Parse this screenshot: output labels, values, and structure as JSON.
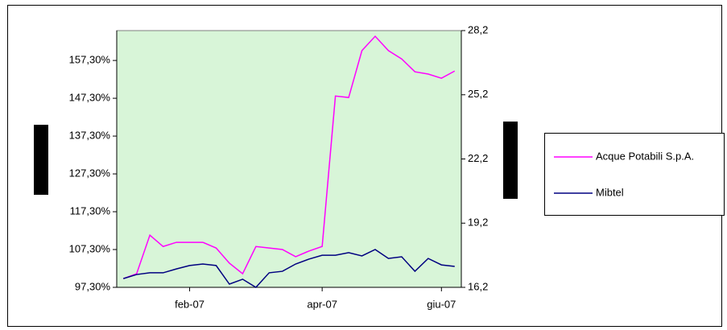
{
  "chart_data": {
    "type": "line",
    "categories": [
      null,
      null,
      null,
      null,
      null,
      "feb-07",
      null,
      null,
      null,
      null,
      null,
      null,
      null,
      null,
      null,
      "apr-07",
      null,
      null,
      null,
      null,
      null,
      null,
      null,
      null,
      "giu-07",
      null
    ],
    "series": [
      {
        "name": "Acque Potabili S.p.A.",
        "color": "#ff00ff",
        "axis": "y",
        "values": [
          99.6,
          100.9,
          111.1,
          108.1,
          109.2,
          109.2,
          109.2,
          107.7,
          103.7,
          100.9,
          108.1,
          107.7,
          107.3,
          105.4,
          106.9,
          108.1,
          147.9,
          147.5,
          159.9,
          163.7,
          159.9,
          157.7,
          154.3,
          153.7,
          152.6,
          154.5
        ]
      },
      {
        "name": "Mibtel",
        "color": "#000080",
        "axis": "y2",
        "values": [
          16.61,
          16.8,
          16.88,
          16.88,
          17.06,
          17.22,
          17.29,
          17.22,
          16.35,
          16.58,
          16.2,
          16.88,
          16.95,
          17.29,
          17.52,
          17.7,
          17.7,
          17.82,
          17.67,
          17.97,
          17.55,
          17.63,
          16.95,
          17.55,
          17.25,
          17.18
        ]
      }
    ],
    "ylim": [
      97.3,
      165.2
    ],
    "yticks": [
      {
        "value": 97.3,
        "label": "97,30%"
      },
      {
        "value": 107.3,
        "label": "107,30%"
      },
      {
        "value": 117.3,
        "label": "117,30%"
      },
      {
        "value": 127.3,
        "label": "127,30%"
      },
      {
        "value": 137.3,
        "label": "137,30%"
      },
      {
        "value": 147.3,
        "label": "147,30%"
      },
      {
        "value": 157.3,
        "label": "157,30%"
      }
    ],
    "y2lim": [
      16.2,
      28.2
    ],
    "y2ticks": [
      {
        "value": 16.2,
        "label": "16,2"
      },
      {
        "value": 19.2,
        "label": "19,2"
      },
      {
        "value": 22.2,
        "label": "22,2"
      },
      {
        "value": 25.2,
        "label": "25,2"
      },
      {
        "value": 28.2,
        "label": "28,2"
      }
    ],
    "plot_color": "#d8f5d8",
    "legend": "right"
  }
}
